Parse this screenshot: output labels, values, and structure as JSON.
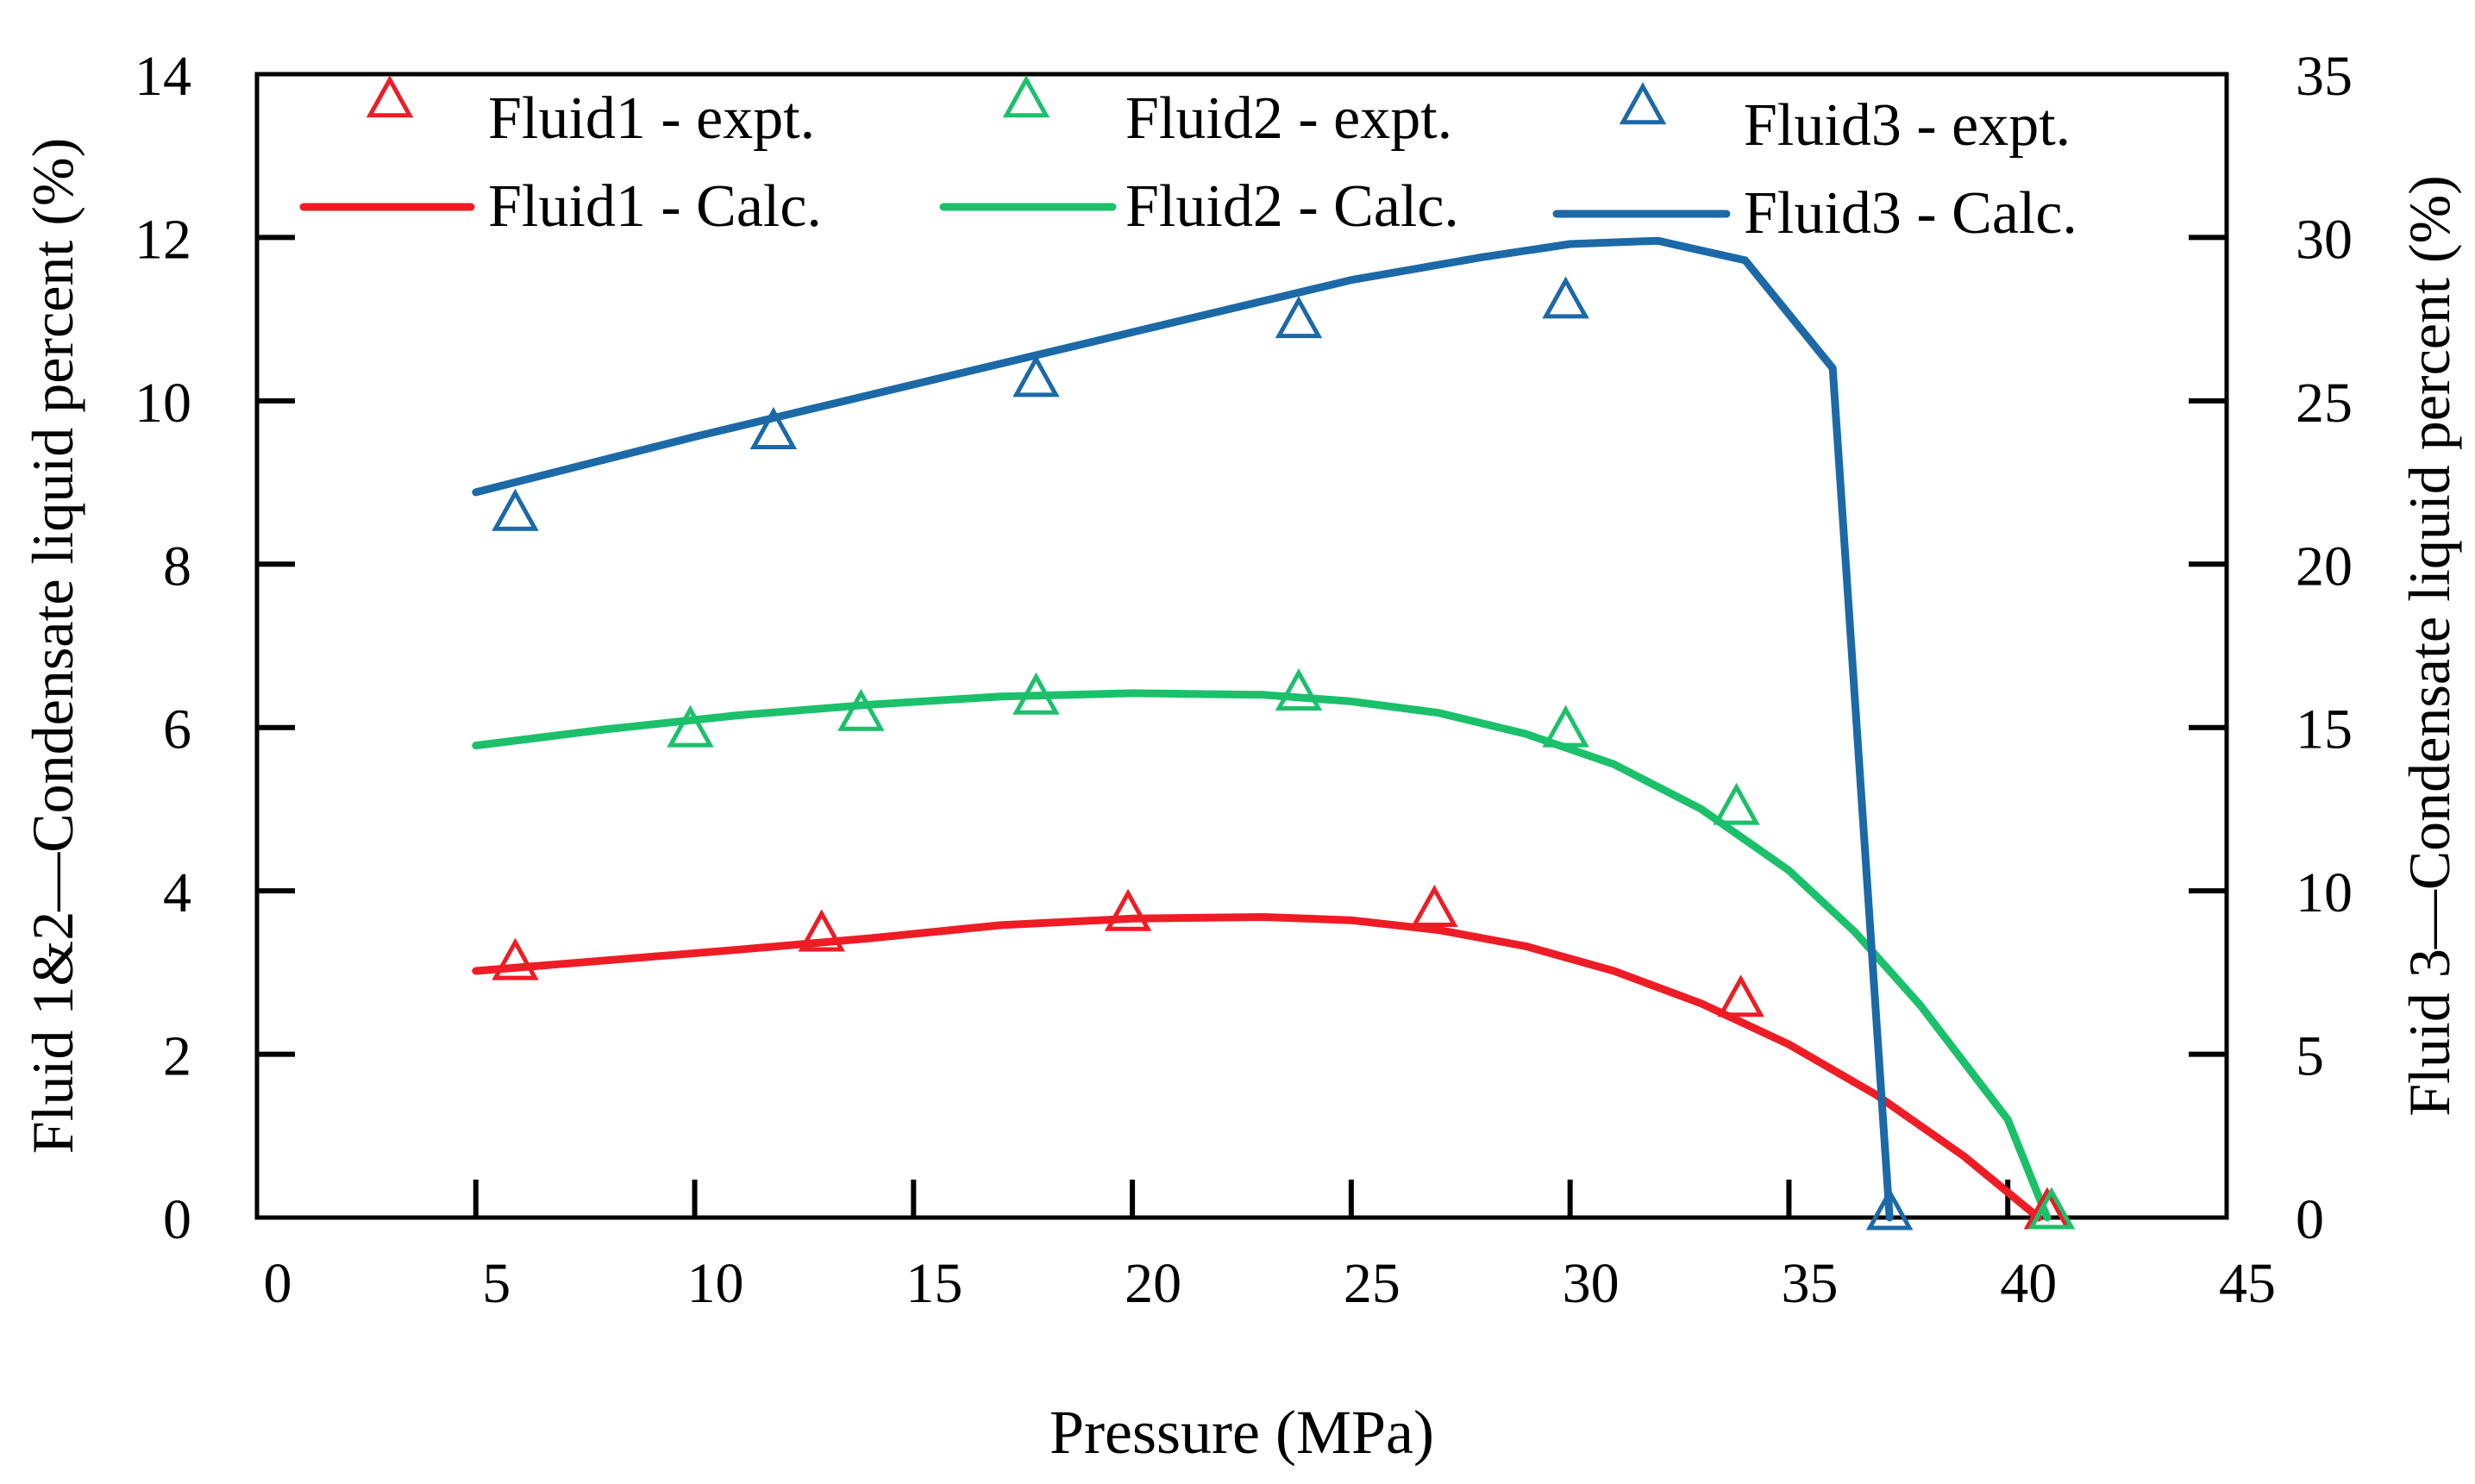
{
  "chart_data": {
    "type": "line",
    "xlabel": "Pressure (MPa)",
    "ylabel_left": "Fluid 1&2—Condensate liquid percent (%)",
    "ylabel_right": "Fluid 3—Condensate liquid percent (%)",
    "xlim": [
      0,
      45
    ],
    "ylim_left": [
      0,
      14
    ],
    "ylim_right": [
      0,
      35
    ],
    "xticks": [
      0,
      5,
      10,
      15,
      20,
      25,
      30,
      35,
      40,
      45
    ],
    "yticks_left": [
      0,
      2,
      4,
      6,
      8,
      10,
      12,
      14
    ],
    "yticks_right": [
      0,
      5,
      10,
      15,
      20,
      25,
      30,
      35
    ],
    "grid": false,
    "legend_position": "top",
    "series": [
      {
        "name": "Fluid1 -  expt.",
        "kind": "marker",
        "axis": "left",
        "color": "#ee1c25",
        "points": [
          [
            5.9,
            3.1
          ],
          [
            12.9,
            3.45
          ],
          [
            19.9,
            3.7
          ],
          [
            26.9,
            3.75
          ],
          [
            33.9,
            2.65
          ],
          [
            40.9,
            0.05
          ]
        ]
      },
      {
        "name": "Fluid2 -  expt.",
        "kind": "marker",
        "axis": "left",
        "color": "#1bc06b",
        "points": [
          [
            9.9,
            5.95
          ],
          [
            13.8,
            6.15
          ],
          [
            17.8,
            6.35
          ],
          [
            23.8,
            6.4
          ],
          [
            29.9,
            5.95
          ],
          [
            33.8,
            5.0
          ],
          [
            41.0,
            0.05
          ]
        ]
      },
      {
        "name": "Fluid3 -  expt.",
        "kind": "marker",
        "axis": "right",
        "color": "#1c69a8",
        "points": [
          [
            5.9,
            21.5
          ],
          [
            11.8,
            24.0
          ],
          [
            17.8,
            25.6
          ],
          [
            23.8,
            27.4
          ],
          [
            29.9,
            28.0
          ],
          [
            37.3,
            0.1
          ]
        ]
      },
      {
        "name": "Fluid1 -  Calc.",
        "kind": "line",
        "axis": "left",
        "color": "#ee1c25",
        "points": [
          [
            5.0,
            3.02
          ],
          [
            8.0,
            3.15
          ],
          [
            11.0,
            3.28
          ],
          [
            14.0,
            3.42
          ],
          [
            17.0,
            3.58
          ],
          [
            20.0,
            3.66
          ],
          [
            23.0,
            3.68
          ],
          [
            25.0,
            3.64
          ],
          [
            27.0,
            3.52
          ],
          [
            29.0,
            3.32
          ],
          [
            31.0,
            3.02
          ],
          [
            33.0,
            2.62
          ],
          [
            35.0,
            2.12
          ],
          [
            37.0,
            1.5
          ],
          [
            39.0,
            0.75
          ],
          [
            40.7,
            0.0
          ]
        ]
      },
      {
        "name": "Fluid2 -  Calc.",
        "kind": "line",
        "axis": "left",
        "color": "#1bc06b",
        "points": [
          [
            5.0,
            5.78
          ],
          [
            8.0,
            5.98
          ],
          [
            11.0,
            6.15
          ],
          [
            14.0,
            6.28
          ],
          [
            17.0,
            6.38
          ],
          [
            20.0,
            6.42
          ],
          [
            23.0,
            6.4
          ],
          [
            25.0,
            6.32
          ],
          [
            27.0,
            6.18
          ],
          [
            29.0,
            5.92
          ],
          [
            31.0,
            5.55
          ],
          [
            33.0,
            5.0
          ],
          [
            35.0,
            4.25
          ],
          [
            36.5,
            3.5
          ],
          [
            38.0,
            2.6
          ],
          [
            40.0,
            1.2
          ],
          [
            40.9,
            0.0
          ]
        ]
      },
      {
        "name": "Fluid3 -  Calc.",
        "kind": "line",
        "axis": "right",
        "color": "#1c69a8",
        "points": [
          [
            5.0,
            22.2
          ],
          [
            10.0,
            23.9
          ],
          [
            15.0,
            25.5
          ],
          [
            20.0,
            27.1
          ],
          [
            25.0,
            28.7
          ],
          [
            28.0,
            29.4
          ],
          [
            30.0,
            29.8
          ],
          [
            32.0,
            29.9
          ],
          [
            34.0,
            29.3
          ],
          [
            36.0,
            26.0
          ],
          [
            37.3,
            0.0
          ]
        ]
      }
    ]
  }
}
